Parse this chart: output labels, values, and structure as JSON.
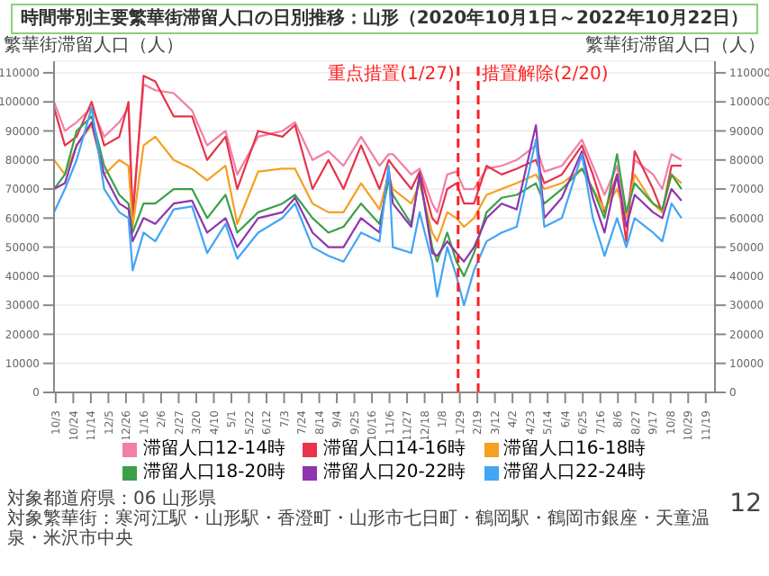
{
  "chart_data": {
    "type": "line",
    "title": "時間帯別主要繁華街滞留人口の日別推移：山形（2020年10月1日～2022年10月22日）",
    "ylabel": "繁華街滞留人口（人）",
    "y2label": "繁華街滞留人口（人）",
    "x": [
      "2020-10-01",
      "2020-10-14",
      "2020-10-28",
      "2020-11-15",
      "2020-11-30",
      "2020-12-18",
      "2020-12-29",
      "2021-01-03",
      "2021-01-16",
      "2021-01-30",
      "2021-02-21",
      "2021-03-15",
      "2021-04-02",
      "2021-04-24",
      "2021-05-08",
      "2021-06-02",
      "2021-07-01",
      "2021-07-16",
      "2021-08-06",
      "2021-08-25",
      "2021-09-12",
      "2021-10-03",
      "2021-10-25",
      "2021-11-05",
      "2021-11-10",
      "2021-12-02",
      "2021-12-12",
      "2021-12-27",
      "2022-01-02",
      "2022-01-14",
      "2022-01-25",
      "2022-02-03",
      "2022-02-15",
      "2022-03-02",
      "2022-03-20",
      "2022-04-07",
      "2022-04-30",
      "2022-05-10",
      "2022-05-31",
      "2022-06-24",
      "2022-07-07",
      "2022-07-21",
      "2022-08-05",
      "2022-08-16",
      "2022-08-26",
      "2022-09-17",
      "2022-09-28",
      "2022-10-09",
      "2022-10-21"
    ],
    "series": [
      {
        "name": "滞留人口12-14時",
        "color": "#f27fa5",
        "values": [
          100000,
          90000,
          93000,
          98000,
          88000,
          93000,
          98000,
          62000,
          106000,
          104000,
          103000,
          97000,
          85000,
          90000,
          75000,
          88000,
          90000,
          93000,
          80000,
          83000,
          78000,
          88000,
          78000,
          82000,
          82000,
          75000,
          77000,
          65000,
          62000,
          75000,
          76000,
          70000,
          70000,
          77000,
          78000,
          80000,
          85000,
          76000,
          78000,
          87000,
          78000,
          68000,
          78000,
          60000,
          80000,
          75000,
          70000,
          82000,
          80000
        ]
      },
      {
        "name": "滞留人口14-16時",
        "color": "#e8334a",
        "values": [
          98000,
          85000,
          88000,
          100000,
          85000,
          88000,
          100000,
          60000,
          109000,
          107000,
          95000,
          95000,
          80000,
          88000,
          70000,
          90000,
          88000,
          92000,
          70000,
          80000,
          70000,
          85000,
          70000,
          80000,
          78000,
          70000,
          76000,
          60000,
          58000,
          70000,
          72000,
          65000,
          65000,
          78000,
          75000,
          77000,
          80000,
          72000,
          75000,
          85000,
          75000,
          62000,
          75000,
          52000,
          83000,
          70000,
          62000,
          78000,
          78000
        ]
      },
      {
        "name": "滞留人口16-18時",
        "color": "#f5a020",
        "values": [
          80000,
          75000,
          85000,
          92000,
          75000,
          80000,
          78000,
          57000,
          85000,
          88000,
          80000,
          77000,
          73000,
          78000,
          58000,
          76000,
          77000,
          77000,
          65000,
          62000,
          62000,
          72000,
          63000,
          75000,
          70000,
          65000,
          72000,
          55000,
          52000,
          62000,
          60000,
          57000,
          60000,
          68000,
          70000,
          72000,
          75000,
          70000,
          72000,
          77000,
          70000,
          63000,
          70000,
          60000,
          75000,
          65000,
          62000,
          75000,
          72000
        ]
      },
      {
        "name": "滞留人口18-20時",
        "color": "#3aa14a",
        "values": [
          70000,
          75000,
          90000,
          95000,
          78000,
          68000,
          65000,
          55000,
          65000,
          65000,
          70000,
          70000,
          60000,
          68000,
          55000,
          62000,
          65000,
          68000,
          60000,
          55000,
          57000,
          65000,
          58000,
          73000,
          68000,
          58000,
          75000,
          50000,
          45000,
          55000,
          45000,
          40000,
          48000,
          62000,
          67000,
          68000,
          72000,
          65000,
          70000,
          77000,
          70000,
          60000,
          82000,
          62000,
          72000,
          65000,
          63000,
          75000,
          70000
        ]
      },
      {
        "name": "滞留人口20-22時",
        "color": "#8e35b0",
        "values": [
          70000,
          72000,
          85000,
          93000,
          75000,
          65000,
          63000,
          52000,
          60000,
          58000,
          65000,
          66000,
          55000,
          60000,
          50000,
          60000,
          62000,
          67000,
          55000,
          50000,
          50000,
          60000,
          55000,
          77000,
          65000,
          57000,
          75000,
          48000,
          47000,
          52000,
          48000,
          45000,
          50000,
          60000,
          65000,
          63000,
          92000,
          60000,
          67000,
          83000,
          67000,
          55000,
          75000,
          57000,
          68000,
          62000,
          60000,
          70000,
          66000
        ]
      },
      {
        "name": "滞留人口22-24時",
        "color": "#42a5f5",
        "values": [
          62000,
          70000,
          80000,
          98000,
          70000,
          62000,
          60000,
          42000,
          55000,
          52000,
          63000,
          64000,
          48000,
          58000,
          46000,
          55000,
          60000,
          65000,
          50000,
          47000,
          45000,
          55000,
          52000,
          78000,
          50000,
          48000,
          62000,
          45000,
          33000,
          50000,
          40000,
          30000,
          42000,
          52000,
          55000,
          57000,
          87000,
          57000,
          60000,
          82000,
          60000,
          47000,
          60000,
          50000,
          60000,
          55000,
          52000,
          65000,
          60000
        ]
      }
    ],
    "xlim": [
      "2020-10-01",
      "2022-11-30"
    ],
    "xticks": [
      {
        "value": "2020-10-03",
        "label": "10/3"
      },
      {
        "value": "2020-10-24",
        "label": "10/24"
      },
      {
        "value": "2020-11-14",
        "label": "11/14"
      },
      {
        "value": "2020-12-05",
        "label": "12/5"
      },
      {
        "value": "2020-12-26",
        "label": "12/26"
      },
      {
        "value": "2021-01-16",
        "label": "1/16"
      },
      {
        "value": "2021-02-06",
        "label": "2/6"
      },
      {
        "value": "2021-02-27",
        "label": "2/27"
      },
      {
        "value": "2021-03-20",
        "label": "3/20"
      },
      {
        "value": "2021-04-10",
        "label": "4/10"
      },
      {
        "value": "2021-05-01",
        "label": "5/1"
      },
      {
        "value": "2021-05-22",
        "label": "5/22"
      },
      {
        "value": "2021-06-12",
        "label": "6/12"
      },
      {
        "value": "2021-07-03",
        "label": "7/3"
      },
      {
        "value": "2021-07-24",
        "label": "7/24"
      },
      {
        "value": "2021-08-14",
        "label": "8/14"
      },
      {
        "value": "2021-09-04",
        "label": "9/4"
      },
      {
        "value": "2021-09-25",
        "label": "9/25"
      },
      {
        "value": "2021-10-16",
        "label": "10/16"
      },
      {
        "value": "2021-11-06",
        "label": "11/6"
      },
      {
        "value": "2021-11-27",
        "label": "11/27"
      },
      {
        "value": "2021-12-18",
        "label": "12/18"
      },
      {
        "value": "2022-01-08",
        "label": "1/8"
      },
      {
        "value": "2022-01-29",
        "label": "1/29"
      },
      {
        "value": "2022-02-19",
        "label": "2/19"
      },
      {
        "value": "2022-03-12",
        "label": "3/12"
      },
      {
        "value": "2022-04-02",
        "label": "4/2"
      },
      {
        "value": "2022-04-23",
        "label": "4/23"
      },
      {
        "value": "2022-05-14",
        "label": "5/14"
      },
      {
        "value": "2022-06-04",
        "label": "6/4"
      },
      {
        "value": "2022-06-25",
        "label": "6/25"
      },
      {
        "value": "2022-07-16",
        "label": "7/16"
      },
      {
        "value": "2022-08-06",
        "label": "8/6"
      },
      {
        "value": "2022-08-27",
        "label": "8/27"
      },
      {
        "value": "2022-09-17",
        "label": "9/17"
      },
      {
        "value": "2022-10-08",
        "label": "10/8"
      },
      {
        "value": "2022-10-29",
        "label": "10/29"
      },
      {
        "value": "2022-11-19",
        "label": "11/19"
      }
    ],
    "ylim": [
      0,
      114000
    ],
    "yticks": [
      0,
      10000,
      20000,
      30000,
      40000,
      50000,
      60000,
      70000,
      80000,
      90000,
      100000,
      110000
    ],
    "y2lim": [
      0,
      114000
    ],
    "y2ticks": [
      0,
      10000,
      20000,
      30000,
      40000,
      50000,
      60000,
      70000,
      80000,
      90000,
      100000,
      110000
    ],
    "ref_lines": [
      {
        "axis": "x",
        "value": "2022-01-27",
        "label": "重点措置(1/27)",
        "color": "#ff2020",
        "line_style": "dashed"
      },
      {
        "axis": "x",
        "value": "2022-02-20",
        "label": "措置解除(2/20)",
        "color": "#ff2020",
        "line_style": "dashed"
      }
    ],
    "grid": "y",
    "legend": "bottom",
    "marker": "none",
    "line_style": "solid",
    "annotations": [
      "対象都道府県：06 山形県",
      "対象繁華街：寒河江駅・山形駅・香澄町・山形市七日町・鶴岡駅・鶴岡市銀座・天童温泉・米沢市中央",
      "12"
    ]
  }
}
